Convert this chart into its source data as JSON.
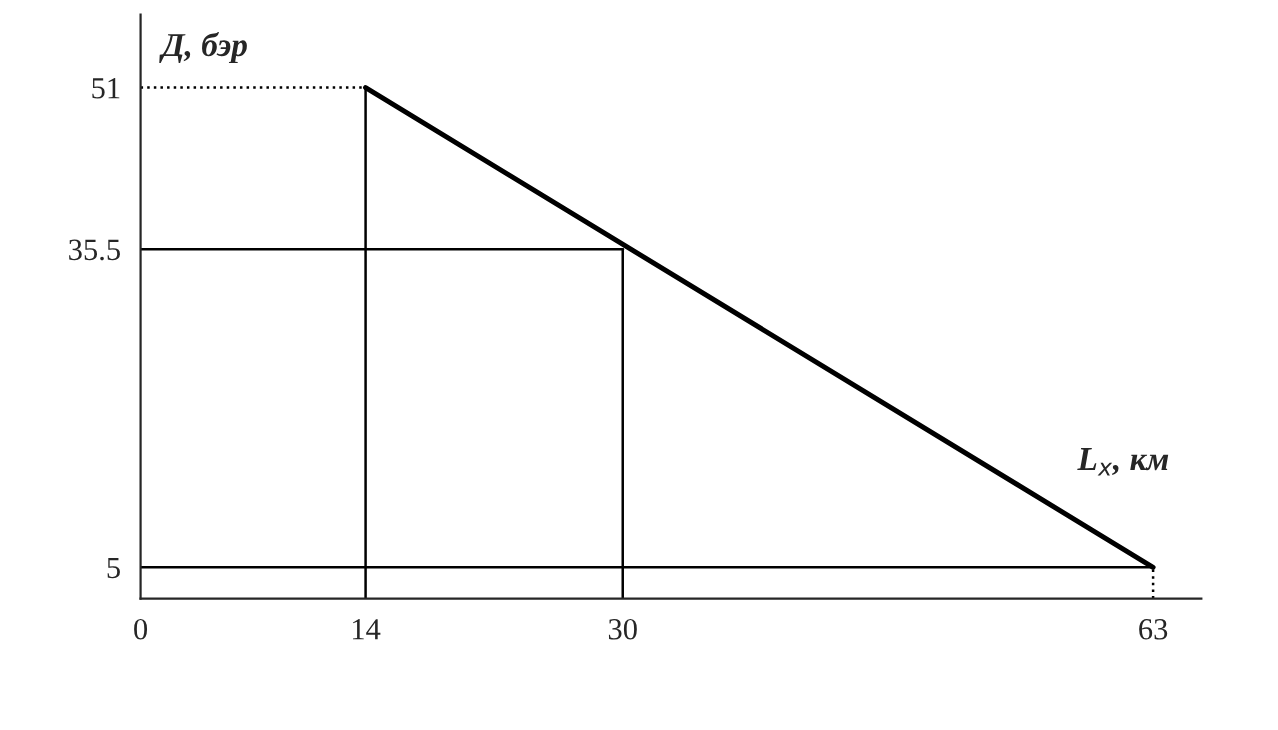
{
  "chart_data": {
    "type": "line",
    "xlabel": "L$_{x}$, км",
    "ylabel": "Д, бэр",
    "x": [
      14,
      63
    ],
    "series": [
      {
        "color": "#000000",
        "values": [
          51,
          5
        ]
      },
      {
        "color": "#000000",
        "x": [
          0,
          14
        ],
        "values": [
          51,
          51
        ],
        "line_style": "dotted"
      },
      {
        "color": "#000000",
        "x": [
          14,
          14
        ],
        "values": [
          2,
          51
        ]
      },
      {
        "color": "#000000",
        "x": [
          30,
          30
        ],
        "values": [
          2,
          35.5
        ]
      },
      {
        "color": "#000000",
        "x": [
          30,
          0
        ],
        "values": [
          35.5,
          35.5
        ]
      },
      {
        "color": "#000000",
        "x": [
          0,
          63
        ],
        "values": [
          5,
          5
        ]
      },
      {
        "color": "#000000",
        "x": [
          63,
          63
        ],
        "values": [
          2,
          5
        ],
        "line_style": "dotted"
      }
    ],
    "xlim": [
      0,
      66
    ],
    "ylim": [
      2,
      58
    ],
    "xticks": [
      0,
      14,
      30,
      63
    ],
    "yticks": [
      5,
      35.5,
      51
    ],
    "grid": false,
    "legend": false,
    "marker": "none",
    "line_style": "solid"
  }
}
